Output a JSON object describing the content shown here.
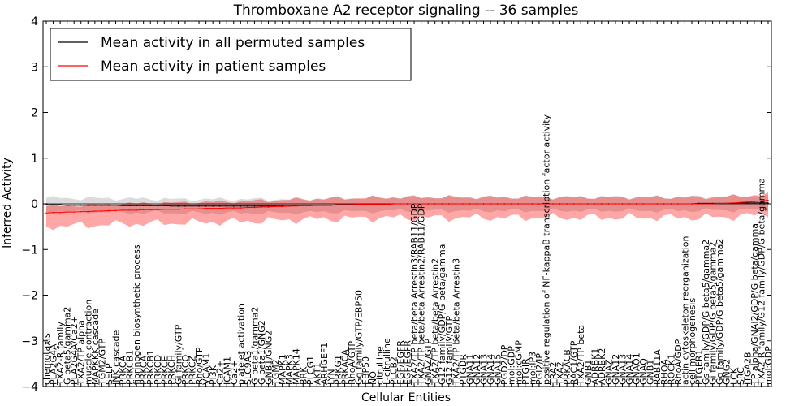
{
  "chart_data": {
    "type": "line",
    "title": "Thromboxane A2 receptor signaling -- 36 samples",
    "xlabel": "Cellular Entities",
    "ylabel": "Inferred Activity",
    "ylim": [
      -4,
      4
    ],
    "yticks": [
      -4,
      -3,
      -2,
      -1,
      0,
      1,
      2,
      3,
      4
    ],
    "ytick_labels": [
      "−4",
      "−3",
      "−2",
      "−1",
      "0",
      "1",
      "2",
      "3",
      "4"
    ],
    "legend": {
      "position": "top-left",
      "entries": [
        {
          "label": "Mean activity in all permuted samples",
          "color": "#000000"
        },
        {
          "label": "Mean activity in patient samples",
          "color": "#ff0000"
        }
      ]
    },
    "categories": [
      "chemotaxis",
      "PLA2G4A",
      "TXA2-R family",
      "G beta5/gamma2",
      "PLA2G4A/Ca2+",
      "TXA2/TP alpha",
      "muscle contraction",
      "MAPKKK cascade",
      "TGM2/GTP",
      "SELP",
      "JNK cascade",
      "PRKCA",
      "PRKCB1",
      "fibrinogen biosynthetic process",
      "PRKCA",
      "PRKCB1",
      "PRKCD",
      "PRKCE",
      "PRKCH",
      "Gi family/GTP",
      "PRKCQ",
      "PRKCZ",
      "Rho/GTP",
      "VCAM1",
      "PI3K",
      "Ca2+",
      "ICAM1",
      "Ca2+",
      "platelet activation",
      "SLC9A3",
      "G beta1/gamma2",
      "G beta1/GNG2",
      "GNB1/GNG2",
      "TGM2",
      "MAPK1",
      "MAPK3",
      "MAPK14",
      "BRK",
      "PLCG1",
      "AKT1",
      "ARHGEF1",
      "LYN",
      "PRKG1",
      "PRKACA",
      "RhoA/GTP",
      "Gq family/GTP/EBP50",
      "EBP50",
      "NO",
      "citrulline",
      "L-citrulline",
      "PLCB2",
      "EGF/EGFR",
      "EGF/EGFR",
      "TXA2/TP beta/beta Arrestin3/RAB11/GDP",
      "TXA2/TP beta/beta Arrestin2/RAB11/GDP",
      "GNAZ/GTP",
      "TXA2/TP beta/beta Arrestin2",
      "G12 family/GDP/G beta/gamma",
      "G12 family/GTP",
      "TXA2/TP beta/beta Arrestin3",
      "PTGDR",
      "GNA11",
      "GNA12",
      "GNA13",
      "GNA14",
      "GNA15",
      "PGD2/DP",
      "mol:GDP",
      "mol:cGMP",
      "PTGIR",
      "mol:IP3",
      "PGI2/IP",
      "positive regulation of NF-kappaB transcription factor activity",
      "TRA2",
      "TXA2",
      "PRKACB",
      "RAC1/GTP",
      "TXA2/TP beta",
      "GNB1",
      "ADRBK1",
      "ADRBK2",
      "GNAZ",
      "GNA12",
      "GNA13",
      "GNA14",
      "GNAO1",
      "GNAQ",
      "GNB1",
      "RAB11A",
      "RHOA",
      "ROCK1",
      "RhoA/GDP",
      "actin cytoskeleton reorganization",
      "cell morphogenesis",
      "PTGER1",
      "Gs family/GDP/G beta5/gamma2",
      "Gi family/GDP/G beta5/gamma2",
      "Gq family/GDP/G beta5/gamma2",
      "GNG2",
      "LCK",
      "SRC",
      "ITGA2B",
      "TP alpha/GNAI2/GDP/G beta/gamma",
      "TXA2-R family/G12 family/GDP/G beta/gamma",
      "mol:GDP"
    ],
    "series": [
      {
        "name": "Mean activity in all permuted samples",
        "color": "#000000",
        "values": [
          -0.02,
          -0.02,
          -0.02,
          -0.03,
          -0.03,
          -0.03,
          -0.03,
          -0.03,
          -0.03,
          -0.03,
          -0.03,
          -0.04,
          -0.04,
          -0.04,
          -0.04,
          -0.04,
          -0.04,
          -0.04,
          -0.05,
          -0.05,
          -0.05,
          -0.05,
          -0.05,
          -0.05,
          -0.05,
          -0.05,
          -0.05,
          -0.05,
          -0.05,
          -0.05,
          -0.05,
          -0.05,
          -0.05,
          -0.05,
          -0.05,
          -0.05,
          -0.04,
          -0.04,
          -0.04,
          -0.03,
          -0.03,
          -0.03,
          -0.02,
          -0.02,
          -0.02,
          -0.02,
          -0.02,
          -0.01,
          -0.01,
          -0.01,
          0.0,
          0.0,
          0.0,
          0.0,
          0.0,
          0.0,
          0.0,
          0.0,
          0.0,
          0.0,
          0.0,
          0.0,
          0.0,
          0.0,
          0.0,
          0.0,
          0.0,
          0.0,
          0.0,
          0.0,
          0.0,
          0.0,
          0.0,
          0.0,
          0.0,
          0.0,
          0.0,
          0.0,
          0.0,
          0.0,
          0.0,
          0.0,
          0.0,
          0.0,
          0.0,
          0.0,
          0.0,
          0.0,
          0.0,
          0.0,
          0.0,
          0.0,
          0.0,
          0.0,
          0.01,
          0.01,
          0.01,
          0.01,
          0.01,
          0.01,
          0.02,
          0.02,
          0.02,
          0.02,
          0.02
        ]
      },
      {
        "name": "Mean activity in patient samples",
        "color": "#ff0000",
        "values": [
          -0.2,
          -0.19,
          -0.19,
          -0.18,
          -0.18,
          -0.17,
          -0.17,
          -0.16,
          -0.16,
          -0.15,
          -0.15,
          -0.14,
          -0.14,
          -0.14,
          -0.13,
          -0.13,
          -0.13,
          -0.12,
          -0.12,
          -0.12,
          -0.11,
          -0.11,
          -0.11,
          -0.1,
          -0.1,
          -0.1,
          -0.09,
          -0.09,
          -0.09,
          -0.08,
          -0.08,
          -0.07,
          -0.07,
          -0.06,
          -0.06,
          -0.05,
          -0.05,
          -0.04,
          -0.04,
          -0.03,
          -0.03,
          -0.03,
          -0.02,
          -0.02,
          -0.02,
          -0.01,
          -0.01,
          -0.01,
          -0.01,
          -0.01,
          0.0,
          0.0,
          0.0,
          0.0,
          0.0,
          0.0,
          0.0,
          0.0,
          0.0,
          0.0,
          0.0,
          0.0,
          0.0,
          0.0,
          0.0,
          0.0,
          0.0,
          0.0,
          0.0,
          0.0,
          0.0,
          0.0,
          0.0,
          0.0,
          0.0,
          0.0,
          0.0,
          0.0,
          0.0,
          0.0,
          0.0,
          0.0,
          0.0,
          0.0,
          0.0,
          0.0,
          0.0,
          0.0,
          0.0,
          0.0,
          0.0,
          0.0,
          0.0,
          0.0,
          0.0,
          0.0,
          0.0,
          0.01,
          0.01,
          0.02,
          0.03,
          0.04,
          0.05,
          0.06,
          0.08
        ]
      }
    ],
    "bands": [
      {
        "series": "Mean activity in all permuted samples",
        "color": "#b0b0b0",
        "upper": 0.15,
        "lower": -0.15
      },
      {
        "series": "Mean activity in patient samples",
        "color": "#ff0000",
        "upper": 0.14,
        "lower": -0.3
      }
    ]
  }
}
